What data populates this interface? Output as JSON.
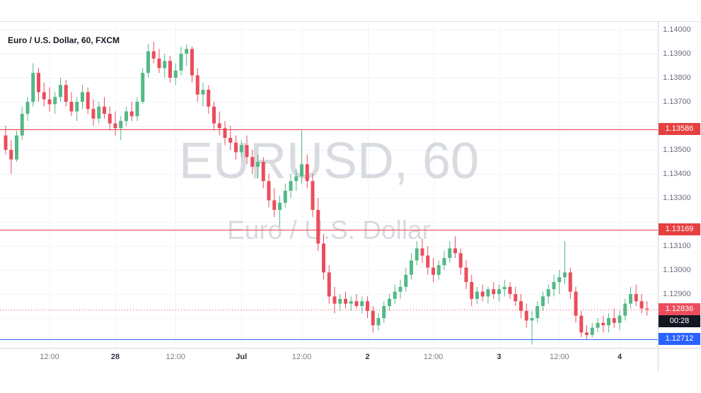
{
  "header": {
    "title": "Euro / U.S. Dollar, 60, FXCM"
  },
  "watermark": {
    "line1": "EURUSD, 60",
    "line2": "Euro / U.S. Dollar"
  },
  "colors": {
    "up": "#53b987",
    "down": "#eb4d5c",
    "grid": "#f0f3fa",
    "axis_border": "#d1d4dc",
    "axis_text": "#696f7c",
    "time_major_text": "#2e3340",
    "watermark": "#aab0bb",
    "resistance": "#e64040",
    "support": "#2962ff",
    "last_price_bg": "#eb4d5c",
    "countdown_bg": "#131722",
    "title_text": "#131722"
  },
  "price_axis": {
    "ticks": [
      {
        "label": "1.14000",
        "price": 1.14
      },
      {
        "label": "1.13900",
        "price": 1.139
      },
      {
        "label": "1.13800",
        "price": 1.138
      },
      {
        "label": "1.13700",
        "price": 1.137
      },
      {
        "label": "1.13500",
        "price": 1.135
      },
      {
        "label": "1.13400",
        "price": 1.134
      },
      {
        "label": "1.13300",
        "price": 1.133
      },
      {
        "label": "1.13100",
        "price": 1.131
      },
      {
        "label": "1.13000",
        "price": 1.13
      },
      {
        "label": "1.12900",
        "price": 1.129
      }
    ]
  },
  "time_axis": {
    "ticks": [
      {
        "label": "12:00",
        "index": 8,
        "major": false
      },
      {
        "label": "28",
        "index": 20,
        "major": true
      },
      {
        "label": "12:00",
        "index": 31,
        "major": false
      },
      {
        "label": "Jul",
        "index": 43,
        "major": true
      },
      {
        "label": "12:00",
        "index": 54,
        "major": false
      },
      {
        "label": "2",
        "index": 66,
        "major": true
      },
      {
        "label": "12:00",
        "index": 78,
        "major": false
      },
      {
        "label": "3",
        "index": 90,
        "major": true
      },
      {
        "label": "12:00",
        "index": 101,
        "major": false
      },
      {
        "label": "4",
        "index": 112,
        "major": true
      }
    ]
  },
  "levels": [
    {
      "label": "1.13586",
      "price": 1.13586,
      "type": "resistance",
      "line": "solid",
      "color": "#e64040"
    },
    {
      "label": "1.13169",
      "price": 1.13169,
      "type": "resistance",
      "line": "solid",
      "color": "#e64040"
    },
    {
      "label": "1.12712",
      "price": 1.12712,
      "type": "support",
      "line": "solid",
      "color": "#2962ff"
    }
  ],
  "last_price": {
    "label": "1.12836",
    "price": 1.12836,
    "countdown": "00:28",
    "color": "#eb4d5c"
  },
  "chart_data": {
    "type": "candlestick",
    "symbol": "EURUSD",
    "interval": "60",
    "exchange": "FXCM",
    "title": "Euro / U.S. Dollar, 60, FXCM",
    "ylim": [
      1.1268,
      1.1404
    ],
    "grid_step": 0.001,
    "legend_position": "top-left",
    "x_tick_labels": [
      "12:00",
      "28",
      "12:00",
      "Jul",
      "12:00",
      "2",
      "12:00",
      "3",
      "12:00",
      "4"
    ],
    "candles_format": [
      "open",
      "high",
      "low",
      "close"
    ],
    "candles": [
      [
        1.1356,
        1.136,
        1.1348,
        1.135
      ],
      [
        1.135,
        1.1354,
        1.134,
        1.1346
      ],
      [
        1.1346,
        1.1358,
        1.1345,
        1.1356
      ],
      [
        1.1356,
        1.1368,
        1.1354,
        1.1365
      ],
      [
        1.1365,
        1.1372,
        1.1362,
        1.137
      ],
      [
        1.137,
        1.1386,
        1.1368,
        1.1382
      ],
      [
        1.1382,
        1.1384,
        1.137,
        1.1374
      ],
      [
        1.1374,
        1.1378,
        1.1368,
        1.1371
      ],
      [
        1.1371,
        1.1376,
        1.1366,
        1.1369
      ],
      [
        1.1369,
        1.1374,
        1.1365,
        1.1372
      ],
      [
        1.1372,
        1.138,
        1.137,
        1.1377
      ],
      [
        1.1377,
        1.1379,
        1.1368,
        1.137
      ],
      [
        1.137,
        1.1374,
        1.1364,
        1.1366
      ],
      [
        1.1366,
        1.1372,
        1.1362,
        1.137
      ],
      [
        1.137,
        1.1377,
        1.1367,
        1.1374
      ],
      [
        1.1374,
        1.1376,
        1.1365,
        1.1367
      ],
      [
        1.1367,
        1.1371,
        1.136,
        1.1363
      ],
      [
        1.1363,
        1.137,
        1.1361,
        1.1368
      ],
      [
        1.1368,
        1.1372,
        1.1363,
        1.1365
      ],
      [
        1.1365,
        1.1368,
        1.1358,
        1.1361
      ],
      [
        1.1361,
        1.1366,
        1.1356,
        1.1359
      ],
      [
        1.1359,
        1.1364,
        1.1354,
        1.1362
      ],
      [
        1.1362,
        1.1368,
        1.136,
        1.1366
      ],
      [
        1.1366,
        1.137,
        1.1362,
        1.1364
      ],
      [
        1.1364,
        1.1372,
        1.1362,
        1.137
      ],
      [
        1.137,
        1.1384,
        1.1369,
        1.1382
      ],
      [
        1.1382,
        1.1394,
        1.138,
        1.1391
      ],
      [
        1.1391,
        1.1395,
        1.1386,
        1.1388
      ],
      [
        1.1388,
        1.1392,
        1.1382,
        1.1384
      ],
      [
        1.1384,
        1.139,
        1.138,
        1.1387
      ],
      [
        1.1387,
        1.1389,
        1.1378,
        1.138
      ],
      [
        1.138,
        1.1386,
        1.1377,
        1.1383
      ],
      [
        1.1383,
        1.1393,
        1.1381,
        1.139
      ],
      [
        1.139,
        1.1394,
        1.1385,
        1.1392
      ],
      [
        1.1392,
        1.1393,
        1.1378,
        1.1381
      ],
      [
        1.1381,
        1.1384,
        1.137,
        1.1373
      ],
      [
        1.1373,
        1.1378,
        1.1368,
        1.1375
      ],
      [
        1.1375,
        1.1377,
        1.1365,
        1.1368
      ],
      [
        1.1368,
        1.137,
        1.1358,
        1.1361
      ],
      [
        1.1361,
        1.1366,
        1.1356,
        1.1359
      ],
      [
        1.1359,
        1.1362,
        1.1352,
        1.1355
      ],
      [
        1.1355,
        1.136,
        1.135,
        1.1353
      ],
      [
        1.1353,
        1.1356,
        1.1346,
        1.1349
      ],
      [
        1.1349,
        1.1354,
        1.1347,
        1.1352
      ],
      [
        1.1352,
        1.1356,
        1.1344,
        1.1347
      ],
      [
        1.1347,
        1.135,
        1.134,
        1.1343
      ],
      [
        1.1343,
        1.1348,
        1.1338,
        1.1345
      ],
      [
        1.1345,
        1.1347,
        1.1334,
        1.1337
      ],
      [
        1.1337,
        1.134,
        1.1326,
        1.1329
      ],
      [
        1.1329,
        1.1334,
        1.1322,
        1.1325
      ],
      [
        1.1325,
        1.1331,
        1.1318,
        1.1328
      ],
      [
        1.1328,
        1.1336,
        1.1326,
        1.1333
      ],
      [
        1.1333,
        1.134,
        1.133,
        1.1337
      ],
      [
        1.1337,
        1.1342,
        1.1333,
        1.1339
      ],
      [
        1.1339,
        1.1358,
        1.1336,
        1.1344
      ],
      [
        1.1344,
        1.1348,
        1.1334,
        1.1337
      ],
      [
        1.1337,
        1.134,
        1.1322,
        1.1325
      ],
      [
        1.1325,
        1.133,
        1.1308,
        1.1311
      ],
      [
        1.1311,
        1.1315,
        1.1296,
        1.1299
      ],
      [
        1.1299,
        1.1302,
        1.1286,
        1.1289
      ],
      [
        1.1289,
        1.1293,
        1.1282,
        1.1286
      ],
      [
        1.1286,
        1.129,
        1.1283,
        1.1288
      ],
      [
        1.1288,
        1.1291,
        1.1284,
        1.1286
      ],
      [
        1.1286,
        1.1289,
        1.1283,
        1.1287
      ],
      [
        1.1287,
        1.129,
        1.1284,
        1.1285
      ],
      [
        1.1285,
        1.1289,
        1.1282,
        1.1287
      ],
      [
        1.1287,
        1.1289,
        1.128,
        1.1283
      ],
      [
        1.1283,
        1.1285,
        1.1274,
        1.1277
      ],
      [
        1.1277,
        1.1282,
        1.1275,
        1.128
      ],
      [
        1.128,
        1.1287,
        1.1278,
        1.1285
      ],
      [
        1.1285,
        1.129,
        1.1283,
        1.1288
      ],
      [
        1.1288,
        1.1294,
        1.1286,
        1.1291
      ],
      [
        1.1291,
        1.1296,
        1.1288,
        1.1293
      ],
      [
        1.1293,
        1.1301,
        1.1291,
        1.1298
      ],
      [
        1.1298,
        1.1307,
        1.1296,
        1.1304
      ],
      [
        1.1304,
        1.1312,
        1.1302,
        1.1309
      ],
      [
        1.1309,
        1.1313,
        1.1303,
        1.1306
      ],
      [
        1.1306,
        1.131,
        1.1298,
        1.1301
      ],
      [
        1.1301,
        1.1305,
        1.1295,
        1.1298
      ],
      [
        1.1298,
        1.1304,
        1.1296,
        1.1302
      ],
      [
        1.1302,
        1.1308,
        1.13,
        1.1305
      ],
      [
        1.1305,
        1.1312,
        1.1303,
        1.1309
      ],
      [
        1.1309,
        1.1314,
        1.1305,
        1.1307
      ],
      [
        1.1307,
        1.1309,
        1.1298,
        1.1301
      ],
      [
        1.1301,
        1.1304,
        1.1292,
        1.1295
      ],
      [
        1.1295,
        1.1298,
        1.1285,
        1.1288
      ],
      [
        1.1288,
        1.1293,
        1.1286,
        1.1291
      ],
      [
        1.1291,
        1.1294,
        1.1287,
        1.1289
      ],
      [
        1.1289,
        1.1293,
        1.1286,
        1.1292
      ],
      [
        1.1292,
        1.1295,
        1.1288,
        1.129
      ],
      [
        1.129,
        1.1294,
        1.1287,
        1.1292
      ],
      [
        1.1292,
        1.1296,
        1.1289,
        1.1293
      ],
      [
        1.1293,
        1.1295,
        1.1288,
        1.129
      ],
      [
        1.129,
        1.1293,
        1.1285,
        1.1287
      ],
      [
        1.1287,
        1.129,
        1.128,
        1.1283
      ],
      [
        1.1283,
        1.1286,
        1.1276,
        1.1279
      ],
      [
        1.1279,
        1.1283,
        1.1269,
        1.128
      ],
      [
        1.128,
        1.1287,
        1.1278,
        1.1285
      ],
      [
        1.1285,
        1.1291,
        1.1283,
        1.1289
      ],
      [
        1.1289,
        1.1294,
        1.1286,
        1.1292
      ],
      [
        1.1292,
        1.1298,
        1.1289,
        1.1295
      ],
      [
        1.1295,
        1.13,
        1.129,
        1.1297
      ],
      [
        1.1297,
        1.1312,
        1.1294,
        1.1299
      ],
      [
        1.1299,
        1.1301,
        1.1288,
        1.1291
      ],
      [
        1.1291,
        1.1293,
        1.1278,
        1.1281
      ],
      [
        1.1281,
        1.1283,
        1.1272,
        1.1274
      ],
      [
        1.1274,
        1.1277,
        1.1271,
        1.1273
      ],
      [
        1.1273,
        1.1278,
        1.1272,
        1.1276
      ],
      [
        1.1276,
        1.128,
        1.1274,
        1.1278
      ],
      [
        1.1278,
        1.1281,
        1.1274,
        1.1277
      ],
      [
        1.1277,
        1.1282,
        1.1274,
        1.128
      ],
      [
        1.128,
        1.1284,
        1.1276,
        1.1278
      ],
      [
        1.1278,
        1.1283,
        1.1275,
        1.1281
      ],
      [
        1.1281,
        1.1288,
        1.1279,
        1.1286
      ],
      [
        1.1286,
        1.1293,
        1.1284,
        1.129
      ],
      [
        1.129,
        1.1294,
        1.1285,
        1.1287
      ],
      [
        1.1287,
        1.129,
        1.1282,
        1.1284
      ],
      [
        1.1284,
        1.1287,
        1.1281,
        1.12836
      ]
    ]
  }
}
